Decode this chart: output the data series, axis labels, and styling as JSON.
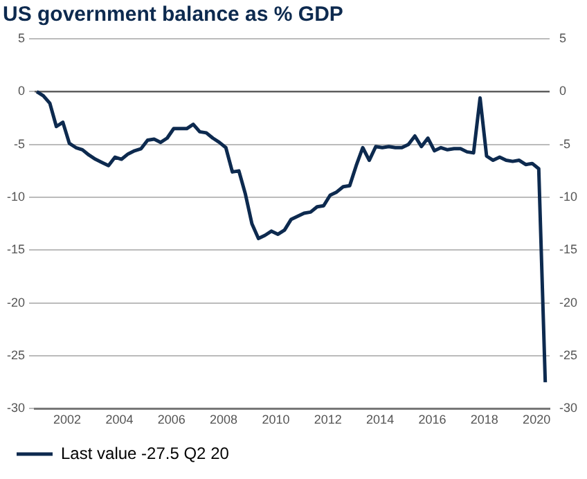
{
  "chart_data": {
    "type": "line",
    "title": "US government balance as % GDP",
    "x": [
      "2000-11",
      "2001-02",
      "2001-05",
      "2001-08",
      "2001-11",
      "2002-02",
      "2002-05",
      "2002-08",
      "2002-11",
      "2003-02",
      "2003-05",
      "2003-08",
      "2003-11",
      "2004-02",
      "2004-05",
      "2004-08",
      "2004-11",
      "2005-02",
      "2005-05",
      "2005-08",
      "2005-11",
      "2006-02",
      "2006-05",
      "2006-08",
      "2006-11",
      "2007-02",
      "2007-05",
      "2007-08",
      "2007-11",
      "2008-02",
      "2008-05",
      "2008-08",
      "2008-11",
      "2009-02",
      "2009-05",
      "2009-08",
      "2009-11",
      "2010-02",
      "2010-05",
      "2010-08",
      "2010-11",
      "2011-02",
      "2011-05",
      "2011-08",
      "2011-11",
      "2012-02",
      "2012-05",
      "2012-08",
      "2012-11",
      "2013-02",
      "2013-05",
      "2013-08",
      "2013-11",
      "2014-02",
      "2014-05",
      "2014-08",
      "2014-11",
      "2015-02",
      "2015-05",
      "2015-08",
      "2015-11",
      "2016-02",
      "2016-05",
      "2016-08",
      "2016-11",
      "2017-02",
      "2017-05",
      "2017-08",
      "2017-11",
      "2018-02",
      "2018-05",
      "2018-08",
      "2018-11",
      "2019-02",
      "2019-05",
      "2019-08",
      "2019-11",
      "2020-02",
      "2020-05"
    ],
    "series": [
      {
        "name": "Last value -27.5 Q2 20",
        "color": "#0d2a4f",
        "values": [
          0,
          -0.4,
          -1.1,
          -3.3,
          -2.9,
          -4.9,
          -5.3,
          -5.5,
          -6.0,
          -6.4,
          -6.7,
          -7.0,
          -6.2,
          -6.4,
          -5.9,
          -5.6,
          -5.4,
          -4.6,
          -4.5,
          -4.8,
          -4.4,
          -3.5,
          -3.5,
          -3.5,
          -3.1,
          -3.8,
          -3.9,
          -4.4,
          -4.8,
          -5.3,
          -7.6,
          -7.5,
          -9.7,
          -12.5,
          -13.9,
          -13.6,
          -13.2,
          -13.5,
          -13.1,
          -12.1,
          -11.8,
          -11.5,
          -11.4,
          -10.9,
          -10.8,
          -9.8,
          -9.5,
          -9.0,
          -8.9,
          -7.0,
          -5.3,
          -6.5,
          -5.2,
          -5.3,
          -5.2,
          -5.3,
          -5.3,
          -5.0,
          -4.2,
          -5.2,
          -4.4,
          -5.6,
          -5.3,
          -5.5,
          -5.4,
          -5.4,
          -5.7,
          -5.8,
          -0.6,
          -6.1,
          -6.5,
          -6.2,
          -6.5,
          -6.6,
          -6.5,
          -6.9,
          -6.8,
          -7.3,
          -27.5
        ]
      }
    ],
    "xlim": [
      "2000-10",
      "2020-07"
    ],
    "xticks": [
      "2002",
      "2004",
      "2006",
      "2008",
      "2010",
      "2012",
      "2014",
      "2016",
      "2018",
      "2020"
    ],
    "ylim": [
      -30,
      5
    ],
    "yticks": [
      -30,
      -25,
      -20,
      -15,
      -10,
      -5,
      0,
      5
    ],
    "y2lim": [
      -30,
      5
    ],
    "y2ticks": [
      -30,
      -25,
      -20,
      -15,
      -10,
      -5,
      0,
      5
    ],
    "ref_lines": [
      {
        "axis": "y",
        "value": 0,
        "color": "#555555"
      }
    ],
    "grid": "y",
    "legend": "bottom left",
    "marker": "none",
    "line_style": "solid"
  }
}
